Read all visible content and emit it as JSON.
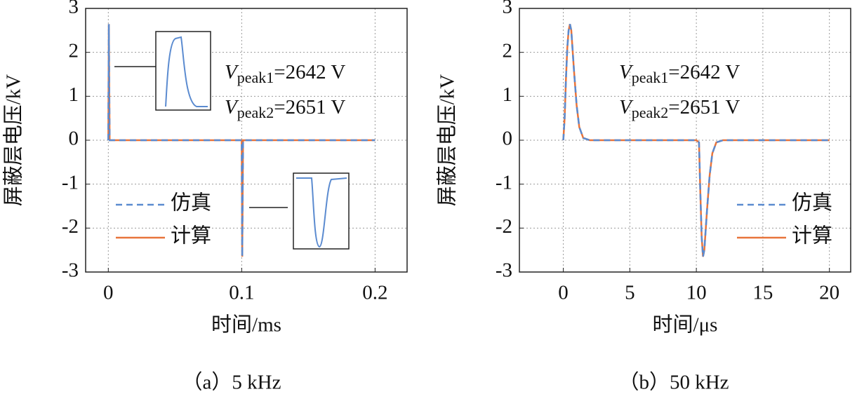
{
  "chart_data": [
    {
      "type": "line",
      "ylabel": "屏蔽层电压/kV",
      "xlabel": "时间/ms",
      "subtitle": "（a）5 kHz",
      "x": [
        0,
        0.0004,
        0.001,
        0.1,
        0.1004,
        0.101,
        0.2
      ],
      "series": [
        {
          "name": "计算",
          "color": "#e8743b",
          "dash": false,
          "values": [
            0,
            2.642,
            0,
            0,
            -2.651,
            0,
            0
          ]
        },
        {
          "name": "仿真",
          "color": "#5b8bd0",
          "dash": true,
          "values": [
            0,
            2.642,
            0,
            0,
            -2.651,
            0,
            0
          ]
        }
      ],
      "xlim": [
        -0.017,
        0.224
      ],
      "xticks": [
        0,
        0.1,
        0.2
      ],
      "ylim": [
        -3,
        3
      ],
      "yticks": [
        -3,
        -2,
        -1,
        0,
        1,
        2,
        3
      ],
      "grid": true,
      "legend": "lower left",
      "annotations": [
        {
          "base": "V",
          "sub": "peak1",
          "rest": "=2642 V"
        },
        {
          "base": "V",
          "sub": "peak2",
          "rest": "=2651 V"
        }
      ]
    },
    {
      "type": "line",
      "ylabel": "屏蔽层电压/kV",
      "xlabel": "时间/μs",
      "subtitle": "（b）50 kHz",
      "x": [
        0,
        0.1,
        0.2,
        0.3,
        0.4,
        0.5,
        0.6,
        0.8,
        1.0,
        1.2,
        1.5,
        2,
        10,
        10.2,
        10.3,
        10.4,
        10.5,
        10.6,
        10.8,
        11,
        11.2,
        11.5,
        12,
        20
      ],
      "series": [
        {
          "name": "计算",
          "color": "#e8743b",
          "dash": false,
          "values": [
            0,
            0.5,
            1.4,
            2.1,
            2.5,
            2.642,
            2.5,
            1.6,
            0.8,
            0.3,
            0.05,
            0,
            0,
            -0.05,
            -1.2,
            -2.2,
            -2.651,
            -2.5,
            -1.6,
            -0.8,
            -0.3,
            -0.05,
            0,
            0
          ]
        },
        {
          "name": "仿真",
          "color": "#5b8bd0",
          "dash": true,
          "values": [
            0,
            0.5,
            1.4,
            2.1,
            2.5,
            2.642,
            2.5,
            1.6,
            0.8,
            0.3,
            0.05,
            0,
            0,
            -0.05,
            -1.2,
            -2.2,
            -2.651,
            -2.5,
            -1.6,
            -0.8,
            -0.3,
            -0.05,
            0,
            0
          ]
        }
      ],
      "xlim": [
        -3.3,
        21.6
      ],
      "xticks": [
        0,
        5,
        10,
        15,
        20
      ],
      "ylim": [
        -3,
        3
      ],
      "yticks": [
        -3,
        -2,
        -1,
        0,
        1,
        2,
        3
      ],
      "grid": true,
      "legend": "lower right",
      "annotations": [
        {
          "base": "V",
          "sub": "peak1",
          "rest": "=2642 V"
        },
        {
          "base": "V",
          "sub": "peak2",
          "rest": "=2651 V"
        }
      ]
    }
  ]
}
